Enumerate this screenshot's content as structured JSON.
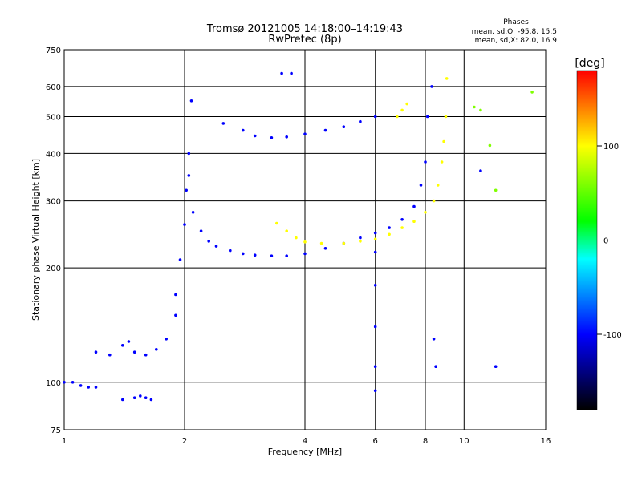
{
  "chart_data": {
    "type": "scatter",
    "title": "Tromsø 20121005 14:18:00–14:19:43",
    "subtitle": "RwPretec (8p)",
    "stats": {
      "heading": "Phases",
      "line1": "mean, sd,O: -95.8, 15.5",
      "line2": "mean, sd,X:  82.0, 16.9"
    },
    "xlabel": "Frequency [MHz]",
    "ylabel": "Stationary phase Virtual Height [km]",
    "x_scale": "log",
    "y_scale": "log",
    "xlim": [
      1,
      16
    ],
    "ylim": [
      75,
      750
    ],
    "x_ticks": [
      1,
      2,
      4,
      6,
      8,
      10,
      16
    ],
    "x_tick_labels": [
      "1",
      "2",
      "4",
      "6",
      "8",
      "10",
      "16"
    ],
    "y_ticks": [
      75,
      100,
      200,
      300,
      400,
      500,
      600,
      750
    ],
    "y_tick_labels": [
      "75",
      "100",
      "200",
      "300",
      "400",
      "500",
      "600",
      "750"
    ],
    "grid": true,
    "colorbar": {
      "label": "[deg]",
      "range": [
        -180,
        180
      ],
      "ticks": [
        100,
        0,
        -100
      ],
      "tick_labels": [
        "100",
        "0",
        "-100"
      ],
      "colors": [
        "#ff0000",
        "#ff8000",
        "#ffff00",
        "#80ff00",
        "#00ff00",
        "#00ffff",
        "#0080ff",
        "#0000ff",
        "#000080",
        "#000000"
      ]
    },
    "series": [
      {
        "phase": -100,
        "x": [
          1.0,
          1.05,
          1.1,
          1.15,
          1.2
        ],
        "y": [
          100,
          100,
          98,
          97,
          97
        ]
      },
      {
        "phase": -100,
        "x": [
          1.2,
          1.3,
          1.4,
          1.45,
          1.5,
          1.6,
          1.7,
          1.8,
          1.9
        ],
        "y": [
          120,
          118,
          125,
          128,
          120,
          118,
          122,
          130,
          150
        ]
      },
      {
        "phase": -100,
        "x": [
          1.9,
          1.95,
          2.0,
          2.02,
          2.05,
          2.08
        ],
        "y": [
          170,
          210,
          260,
          320,
          400,
          550
        ]
      },
      {
        "phase": -100,
        "x": [
          1.4,
          1.5,
          1.55,
          1.6,
          1.65
        ],
        "y": [
          90,
          91,
          92,
          91,
          90
        ]
      },
      {
        "phase": -100,
        "x": [
          2.05,
          2.1,
          2.2,
          2.3,
          2.4,
          2.6,
          2.8,
          3.0,
          3.3,
          3.6,
          4.0,
          4.5,
          5.0,
          5.5,
          6.0,
          6.5,
          7.0,
          7.5,
          7.8,
          8.0,
          8.1
        ],
        "y": [
          350,
          280,
          250,
          235,
          228,
          222,
          218,
          216,
          215,
          215,
          218,
          225,
          232,
          240,
          247,
          255,
          268,
          290,
          330,
          380,
          500
        ]
      },
      {
        "phase": -100,
        "x": [
          2.5,
          2.8,
          3.0,
          3.3,
          3.6,
          4.0,
          4.5,
          5.0,
          5.5,
          6.0
        ],
        "y": [
          480,
          460,
          445,
          440,
          442,
          450,
          460,
          470,
          485,
          500
        ]
      },
      {
        "phase": 100,
        "x": [
          3.4,
          3.6,
          3.8,
          4.0,
          4.4,
          5.0,
          5.5,
          6.0,
          6.5,
          7.0,
          7.5,
          8.0,
          8.4,
          8.6,
          8.8,
          8.9,
          9.0,
          9.05
        ],
        "y": [
          262,
          250,
          240,
          234,
          232,
          232,
          235,
          238,
          245,
          255,
          265,
          280,
          300,
          330,
          380,
          430,
          500,
          630
        ]
      },
      {
        "phase": -100,
        "x": [
          3.5,
          3.7
        ],
        "y": [
          650,
          650
        ]
      },
      {
        "phase": 100,
        "x": [
          6.8,
          7.0,
          7.2
        ],
        "y": [
          500,
          520,
          540
        ]
      },
      {
        "phase": -100,
        "x": [
          6.0,
          6.0,
          6.0,
          6.0,
          6.0
        ],
        "y": [
          95,
          110,
          140,
          180,
          220
        ]
      },
      {
        "phase": 60,
        "x": [
          10.6,
          11.0,
          11.6,
          12.0,
          14.8
        ],
        "y": [
          530,
          520,
          420,
          320,
          580
        ]
      },
      {
        "phase": -100,
        "x": [
          8.3,
          8.4,
          8.5,
          11.0,
          12.0
        ],
        "y": [
          600,
          130,
          110,
          360,
          110
        ]
      }
    ]
  }
}
